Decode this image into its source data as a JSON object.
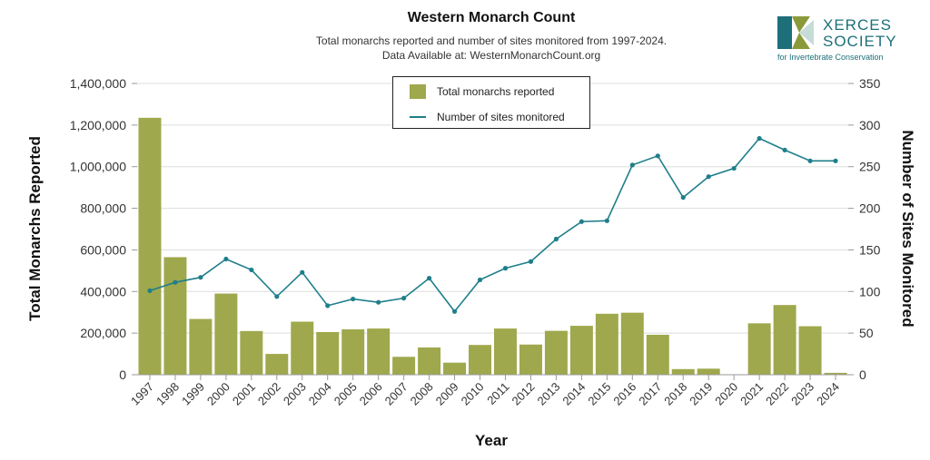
{
  "header": {
    "title": "Western Monarch Count",
    "subtitle_line1": "Total monarchs reported and number of sites monitored from 1997-2024.",
    "subtitle_line2": "Data Available at: WesternMonarchCount.org"
  },
  "logo": {
    "word1": "XERCES",
    "word2": "SOCIETY",
    "tagline": "for Invertebrate Conservation",
    "colors": {
      "teal": "#1d6f7a",
      "green": "#8a9a3a",
      "light": "#c7dcd9"
    }
  },
  "colors": {
    "bars": "#9fa84c",
    "line": "#1f7f8a",
    "grid": "#dddddd",
    "axis": "#999999"
  },
  "chart_data": {
    "type": "bar",
    "title": "Western Monarch Count",
    "xlabel": "Year",
    "ylabel": "Total Monarchs Reported",
    "y2label": "Number of Sites Monitored",
    "ylim": [
      0,
      1400000
    ],
    "y2lim": [
      0,
      350
    ],
    "yticks": [
      "0",
      "200,000",
      "400,000",
      "600,000",
      "800,000",
      "1,000,000",
      "1,200,000",
      "1,400,000"
    ],
    "y2ticks": [
      "0",
      "50",
      "100",
      "150",
      "200",
      "250",
      "300",
      "350"
    ],
    "grid": true,
    "legend_position": "top-center",
    "categories": [
      "1997",
      "1998",
      "1999",
      "2000",
      "2001",
      "2002",
      "2003",
      "2004",
      "2005",
      "2006",
      "2007",
      "2008",
      "2009",
      "2010",
      "2011",
      "2012",
      "2013",
      "2014",
      "2015",
      "2016",
      "2017",
      "2018",
      "2019",
      "2020",
      "2021",
      "2022",
      "2023",
      "2024"
    ],
    "series": [
      {
        "name": "Total monarchs reported",
        "type": "bar",
        "axis": "left",
        "values": [
          1235000,
          565000,
          268000,
          390000,
          210000,
          100000,
          255000,
          205000,
          218000,
          222000,
          86000,
          131000,
          58000,
          143000,
          222000,
          145000,
          211000,
          235000,
          293000,
          298000,
          192000,
          27000,
          29000,
          2000,
          247000,
          335000,
          233000,
          9000
        ]
      },
      {
        "name": "Number of sites monitored",
        "type": "line",
        "axis": "right",
        "values": [
          101,
          111,
          117,
          139,
          126,
          94,
          123,
          83,
          91,
          87,
          92,
          116,
          76,
          114,
          128,
          136,
          163,
          184,
          185,
          252,
          263,
          213,
          238,
          248,
          284,
          270,
          257,
          257
        ]
      }
    ]
  }
}
